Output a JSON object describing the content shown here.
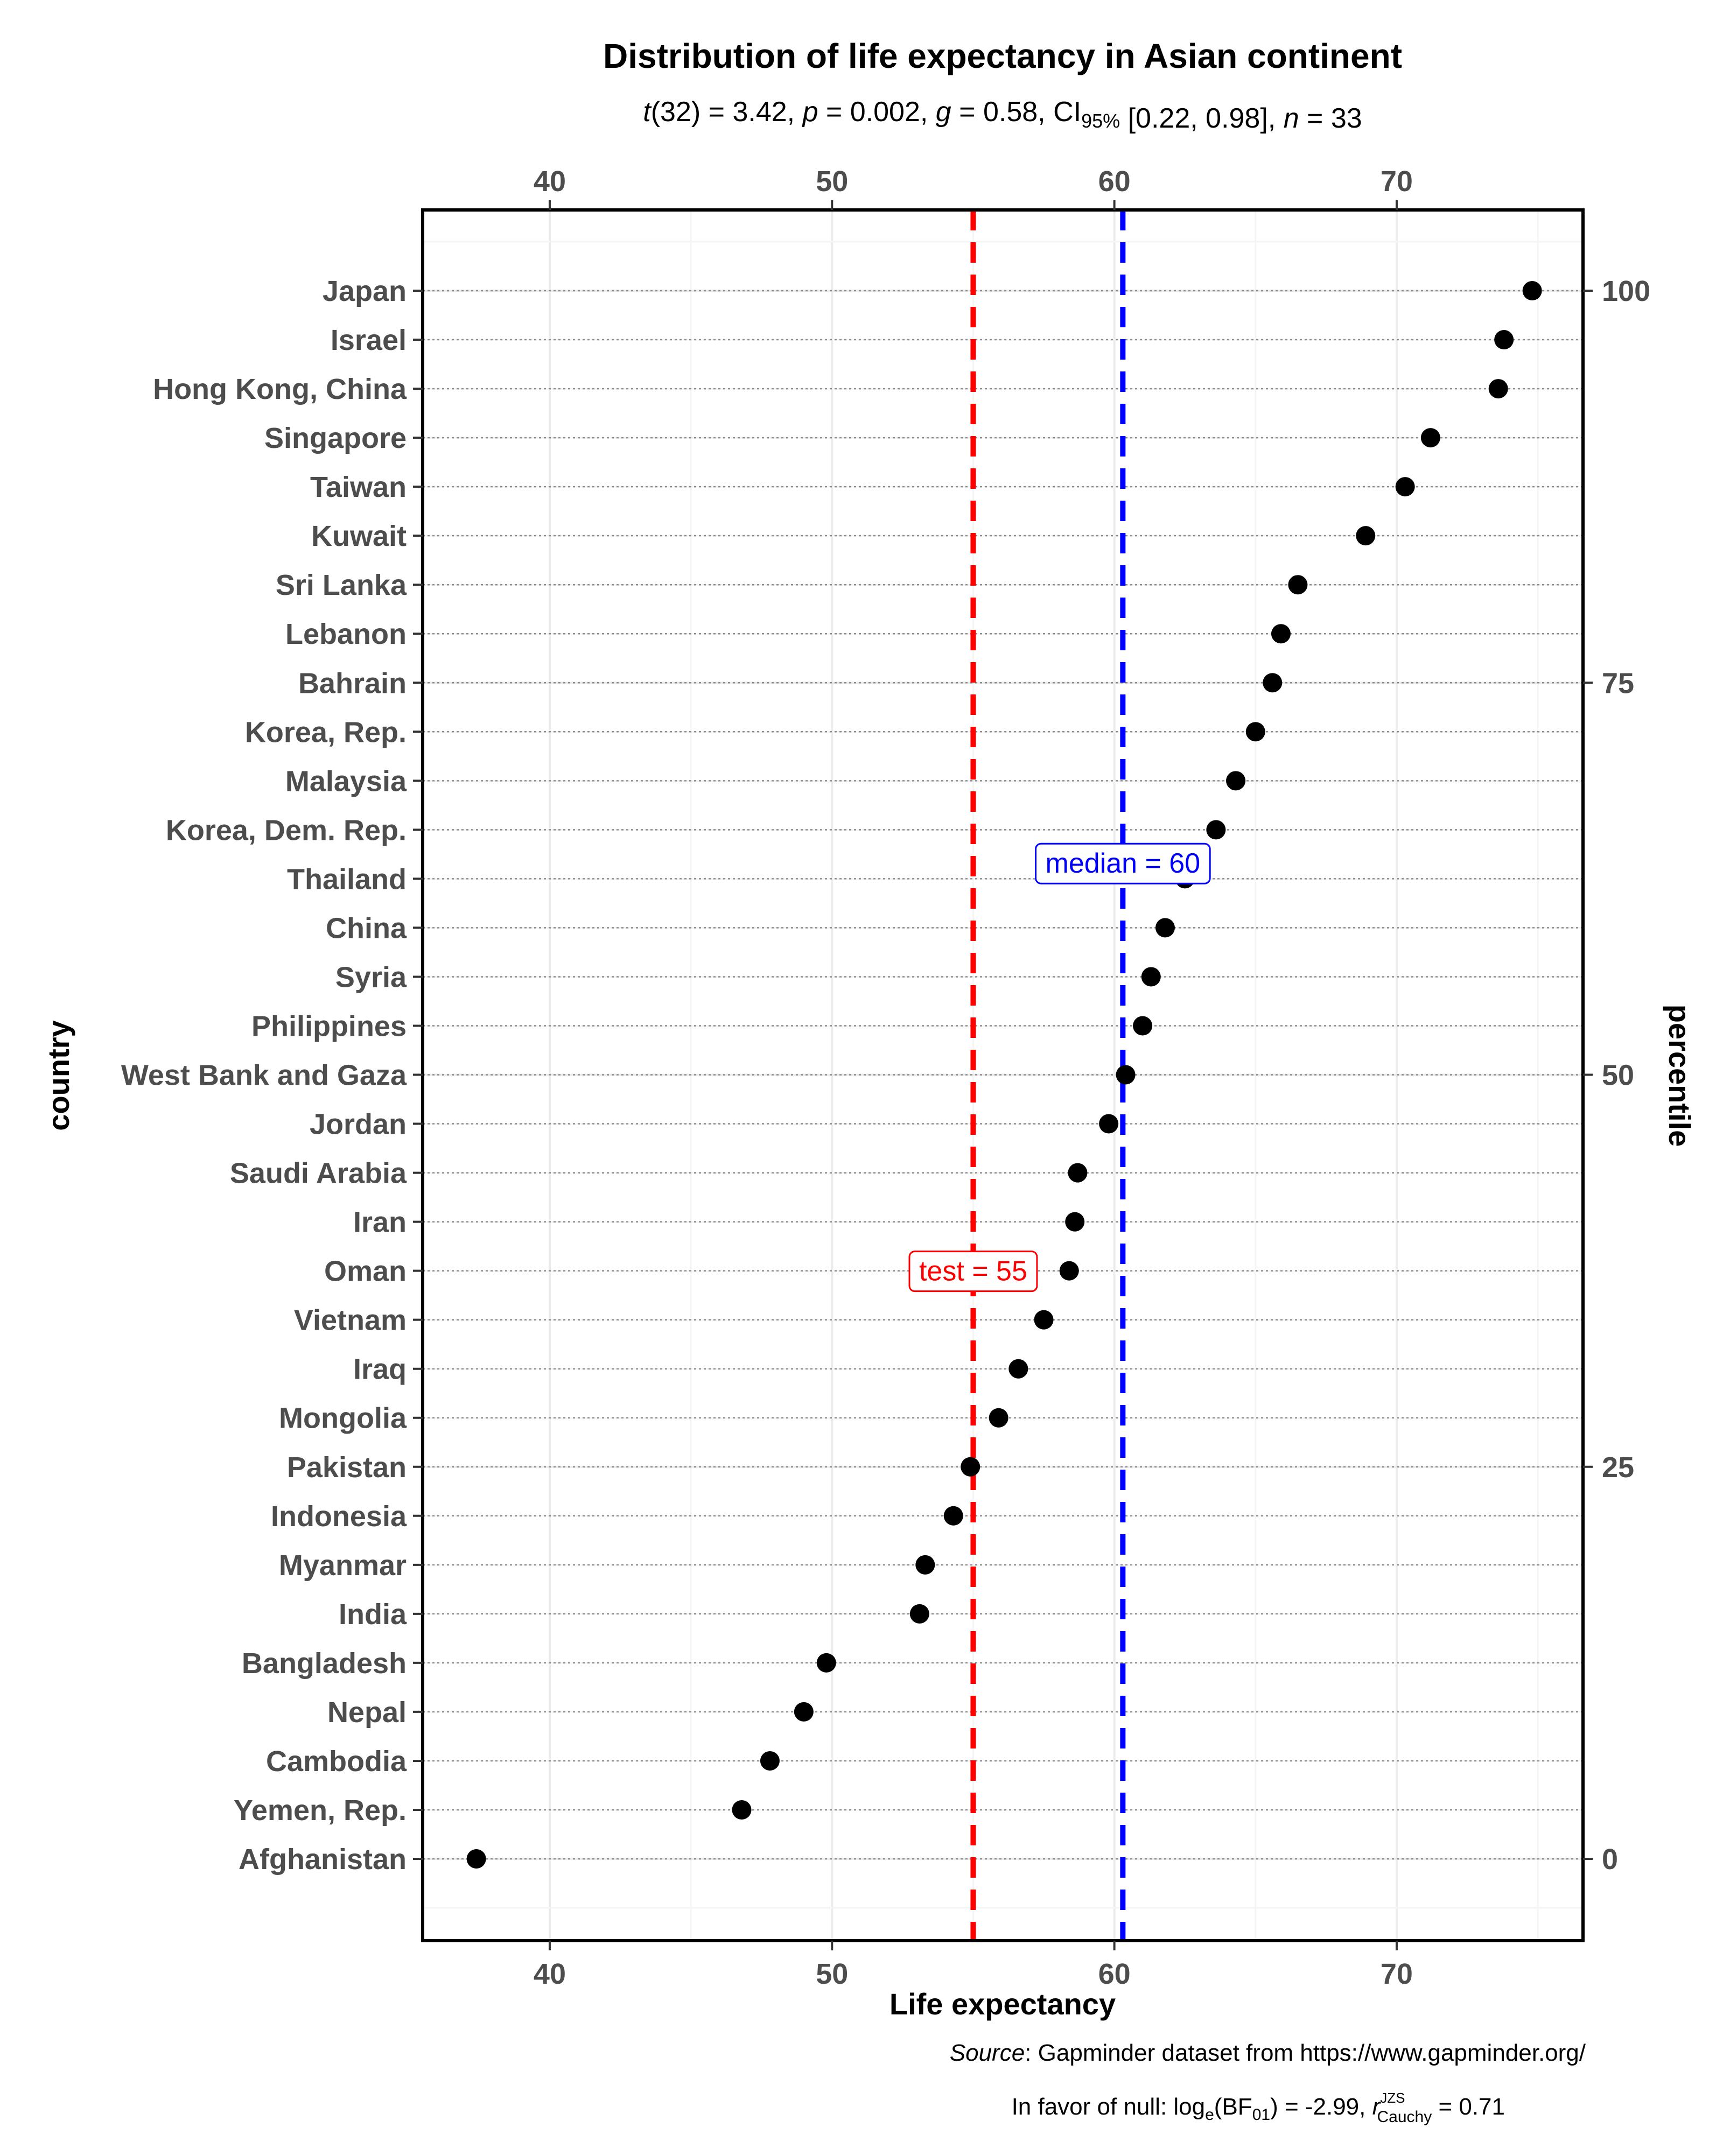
{
  "colors": {
    "test": "#ff0000",
    "median": "#0000ff",
    "points": "#000000",
    "tick_text": "#4d4d4d",
    "grid_major": "#ebebeb",
    "grid_minor": "#f5f5f5",
    "row_line": "#8c8c8c"
  },
  "chart_data": {
    "type": "scatter",
    "title": "Distribution of life expectancy in Asian continent",
    "subtitle": {
      "t_df": "32",
      "t": "3.42",
      "p": "0.002",
      "g": "0.58",
      "ci_level": "95%",
      "ci": "[0.22, 0.98]",
      "n": "33"
    },
    "xlabel": "Life expectancy",
    "ylabel": "country",
    "y2label": "percentile",
    "xlim": [
      35.5,
      76.6
    ],
    "x_ticks": [
      40,
      50,
      60,
      70
    ],
    "x_tick_labels": [
      "40",
      "50",
      "60",
      "70"
    ],
    "percentile_ticks": [
      0,
      25,
      50,
      75,
      100
    ],
    "percentile_tick_labels": [
      "0",
      "25",
      "50",
      "75",
      "100"
    ],
    "countries": [
      {
        "name": "Afghanistan",
        "value": 37.4
      },
      {
        "name": "Yemen, Rep.",
        "value": 46.8
      },
      {
        "name": "Cambodia",
        "value": 47.8
      },
      {
        "name": "Nepal",
        "value": 49.0
      },
      {
        "name": "Bangladesh",
        "value": 49.8
      },
      {
        "name": "India",
        "value": 53.1
      },
      {
        "name": "Myanmar",
        "value": 53.3
      },
      {
        "name": "Indonesia",
        "value": 54.3
      },
      {
        "name": "Pakistan",
        "value": 54.9
      },
      {
        "name": "Mongolia",
        "value": 55.9
      },
      {
        "name": "Iraq",
        "value": 56.6
      },
      {
        "name": "Vietnam",
        "value": 57.5
      },
      {
        "name": "Oman",
        "value": 58.4
      },
      {
        "name": "Iran",
        "value": 58.6
      },
      {
        "name": "Saudi Arabia",
        "value": 58.7
      },
      {
        "name": "Jordan",
        "value": 59.8
      },
      {
        "name": "West Bank and Gaza",
        "value": 60.4
      },
      {
        "name": "Philippines",
        "value": 61.0
      },
      {
        "name": "Syria",
        "value": 61.3
      },
      {
        "name": "China",
        "value": 61.8
      },
      {
        "name": "Thailand",
        "value": 62.5
      },
      {
        "name": "Korea, Dem. Rep.",
        "value": 63.6
      },
      {
        "name": "Malaysia",
        "value": 64.3
      },
      {
        "name": "Korea, Rep.",
        "value": 65.0
      },
      {
        "name": "Bahrain",
        "value": 65.6
      },
      {
        "name": "Lebanon",
        "value": 65.9
      },
      {
        "name": "Sri Lanka",
        "value": 66.5
      },
      {
        "name": "Kuwait",
        "value": 68.9
      },
      {
        "name": "Taiwan",
        "value": 70.3
      },
      {
        "name": "Singapore",
        "value": 71.2
      },
      {
        "name": "Hong Kong, China",
        "value": 73.6
      },
      {
        "name": "Israel",
        "value": 73.8
      },
      {
        "name": "Japan",
        "value": 74.8
      }
    ],
    "reference_lines": [
      {
        "name": "test",
        "value": 55,
        "label": "test = 55",
        "label_at_percentile": 37.5
      },
      {
        "name": "median",
        "value": 60.3,
        "label": "median = 60",
        "label_at_percentile": 63.5
      }
    ],
    "caption": {
      "source_label": "Source",
      "source_text": ": Gapminder dataset from https://www.gapminder.org/",
      "bf_prefix": "In favor of null: log",
      "bf_value": "-2.99",
      "r_cauchy": "0.71"
    }
  }
}
